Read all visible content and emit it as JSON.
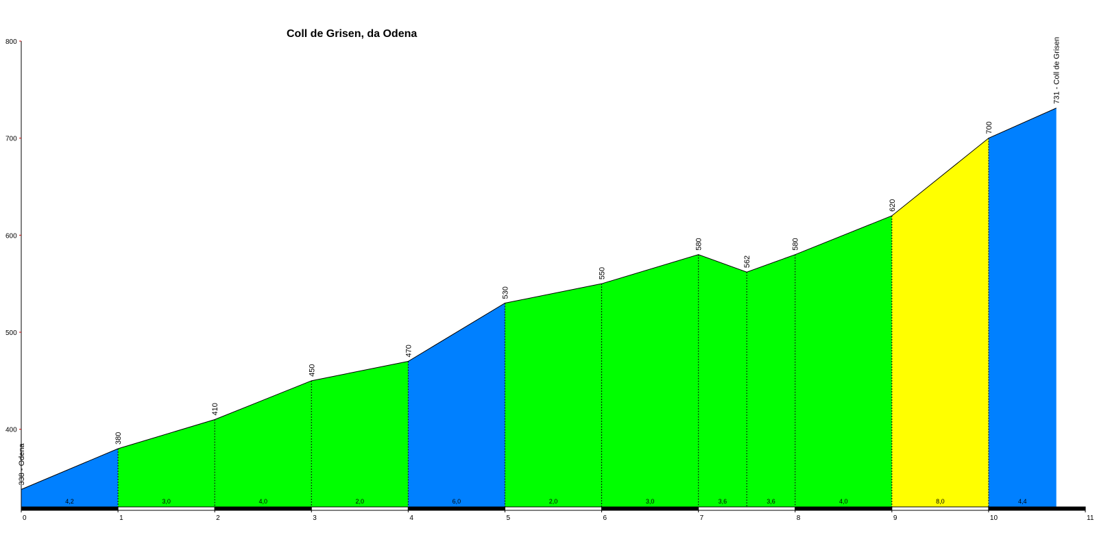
{
  "chart_data": {
    "type": "area",
    "title": "Coll de Grisen, da Odena",
    "x": [
      0,
      1,
      2,
      3,
      4,
      5,
      6,
      7,
      7.5,
      8,
      9,
      10,
      10.7
    ],
    "series": [
      {
        "values": [
          338,
          380,
          410,
          450,
          470,
          530,
          550,
          580,
          562,
          580,
          620,
          700,
          731
        ],
        "value_labels": [
          "338 - Odena",
          "380",
          "410",
          "450",
          "470",
          "530",
          "550",
          "580",
          "562",
          "580",
          "620",
          "700",
          "731 - Coll de Grisen"
        ]
      }
    ],
    "segments": {
      "colors": [
        "#0080ff",
        "#00ff00",
        "#00ff00",
        "#00ff00",
        "#0080ff",
        "#00ff00",
        "#00ff00",
        "#00ff00",
        "#00ff00",
        "#00ff00",
        "#ffff00",
        "#0080ff"
      ],
      "values": [
        4.2,
        3.0,
        4.0,
        2.0,
        6.0,
        2.0,
        3.0,
        3.6,
        3.6,
        4.0,
        8.0,
        4.4
      ],
      "value_labels": [
        "4,2",
        "3,0",
        "4,0",
        "2,0",
        "6,0",
        "2,0",
        "3,0",
        "3,6",
        "3,6",
        "4,0",
        "8,0",
        "4,4"
      ]
    },
    "xlim": [
      0,
      11
    ],
    "xticks": [
      0,
      1,
      2,
      3,
      4,
      5,
      6,
      7,
      8,
      9,
      10,
      11
    ],
    "ylim": [
      320,
      800
    ],
    "yticks": [
      400,
      500,
      600,
      700,
      800
    ]
  }
}
